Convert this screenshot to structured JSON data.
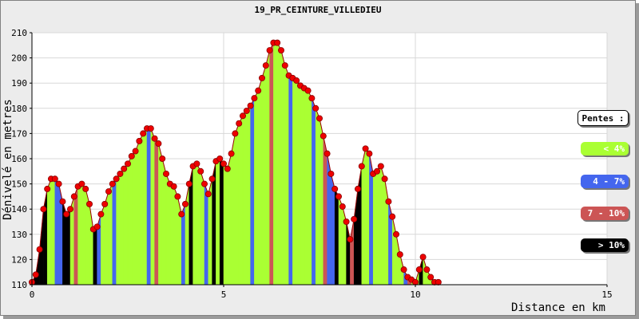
{
  "chart_data": {
    "type": "area",
    "title": "19_PR_CEINTURE_VILLEDIEU",
    "xlabel": "Distance en km",
    "ylabel": "Dénivelé en metres",
    "xlim": [
      0,
      15
    ],
    "ylim": [
      110,
      210
    ],
    "xticks": [
      "0",
      "5",
      "10",
      "15"
    ],
    "yticks": [
      "110",
      "120",
      "130",
      "140",
      "150",
      "160",
      "170",
      "180",
      "190",
      "200",
      "210"
    ],
    "grid": true,
    "legend_title": "Pentes :",
    "legend": [
      {
        "label": "< 4%",
        "color": "#aaff33"
      },
      {
        "label": "4 - 7%",
        "color": "#4466ee"
      },
      {
        "label": "7 - 10%",
        "color": "#cc5555"
      },
      {
        "label": "> 10%",
        "color": "#000000"
      }
    ],
    "x": [
      0,
      0.1,
      0.2,
      0.3,
      0.4,
      0.5,
      0.6,
      0.7,
      0.8,
      0.9,
      1.0,
      1.1,
      1.2,
      1.3,
      1.4,
      1.5,
      1.6,
      1.7,
      1.8,
      1.9,
      2.0,
      2.1,
      2.2,
      2.3,
      2.4,
      2.5,
      2.6,
      2.7,
      2.8,
      2.9,
      3.0,
      3.1,
      3.2,
      3.3,
      3.4,
      3.5,
      3.6,
      3.7,
      3.8,
      3.9,
      4.0,
      4.1,
      4.2,
      4.3,
      4.4,
      4.5,
      4.6,
      4.7,
      4.8,
      4.9,
      5.0,
      5.1,
      5.2,
      5.3,
      5.4,
      5.5,
      5.6,
      5.7,
      5.8,
      5.9,
      6.0,
      6.1,
      6.2,
      6.3,
      6.4,
      6.5,
      6.6,
      6.7,
      6.8,
      6.9,
      7.0,
      7.1,
      7.2,
      7.3,
      7.4,
      7.5,
      7.6,
      7.7,
      7.8,
      7.9,
      8.0,
      8.1,
      8.2,
      8.3,
      8.4,
      8.5,
      8.6,
      8.7,
      8.8,
      8.9,
      9.0,
      9.1,
      9.2,
      9.3,
      9.4,
      9.5,
      9.6,
      9.7,
      9.8,
      9.9,
      10.0,
      10.1,
      10.2,
      10.3,
      10.4,
      10.5,
      10.6
    ],
    "y": [
      111,
      114,
      124,
      140,
      148,
      152,
      152,
      150,
      143,
      138,
      140,
      145,
      149,
      150,
      148,
      142,
      132,
      133,
      138,
      142,
      147,
      150,
      152,
      154,
      156,
      158,
      161,
      163,
      167,
      170,
      172,
      172,
      168,
      166,
      160,
      154,
      150,
      149,
      145,
      138,
      142,
      150,
      157,
      158,
      155,
      150,
      146,
      152,
      159,
      160,
      158,
      156,
      162,
      170,
      174,
      177,
      179,
      181,
      184,
      187,
      192,
      197,
      203,
      206,
      206,
      203,
      197,
      193,
      192,
      191,
      189,
      188,
      187,
      184,
      180,
      176,
      169,
      162,
      154,
      148,
      145,
      141,
      135,
      128,
      136,
      148,
      157,
      164,
      162,
      154,
      155,
      157,
      152,
      143,
      137,
      130,
      122,
      116,
      113,
      112,
      111,
      116,
      121,
      116,
      113,
      111,
      111
    ],
    "slopes": [
      "black",
      "black",
      "black",
      "black",
      "green",
      "green",
      "blue",
      "blue",
      "black",
      "black",
      "green",
      "red",
      "green",
      "green",
      "green",
      "green",
      "black",
      "blue",
      "green",
      "green",
      "green",
      "blue",
      "green",
      "green",
      "green",
      "green",
      "green",
      "green",
      "green",
      "green",
      "blue",
      "green",
      "red",
      "green",
      "green",
      "green",
      "green",
      "green",
      "green",
      "blue",
      "green",
      "black",
      "green",
      "green",
      "green",
      "blue",
      "green",
      "black",
      "green",
      "black",
      "green",
      "green",
      "green",
      "green",
      "green",
      "green",
      "green",
      "blue",
      "green",
      "green",
      "green",
      "green",
      "red",
      "green",
      "green",
      "green",
      "green",
      "blue",
      "green",
      "green",
      "green",
      "green",
      "green",
      "blue",
      "green",
      "green",
      "red",
      "blue",
      "blue",
      "black",
      "green",
      "green",
      "black",
      "red",
      "black",
      "black",
      "green",
      "green",
      "blue",
      "green",
      "green",
      "green",
      "green",
      "blue",
      "green",
      "green",
      "green",
      "blue",
      "red",
      "green",
      "green",
      "black",
      "green",
      "green",
      "green",
      "green",
      "green"
    ]
  }
}
